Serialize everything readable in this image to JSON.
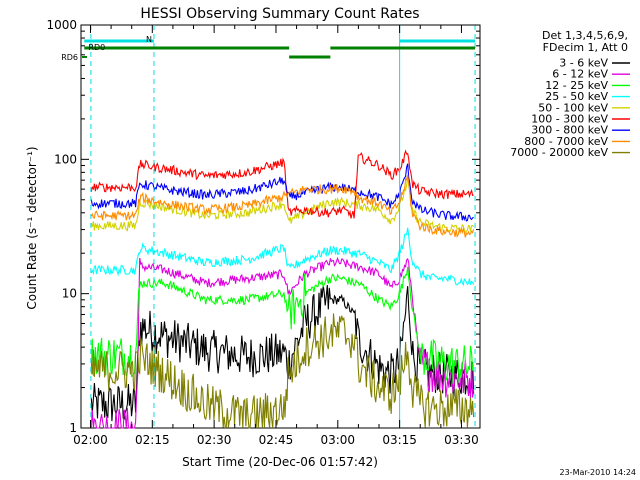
{
  "chart_data": {
    "type": "line",
    "title": "HESSI Observing Summary Count Rates",
    "xlabel": "Start Time (20-Dec-06 01:57:42)",
    "ylabel": "Count Rate (s⁻¹ detector⁻¹)",
    "yscale": "log",
    "xlim_minutes": [
      117.7,
      214.5
    ],
    "ylim": [
      1,
      1000
    ],
    "x_ticks": [
      "02:00",
      "02:15",
      "02:30",
      "02:45",
      "03:00",
      "03:15",
      "03:30"
    ],
    "y_ticks": [
      "1",
      "10",
      "100",
      "1000"
    ],
    "legend_header": [
      "Det 1,3,4,5,6,9,",
      "FDecim 1, Att 0"
    ],
    "footer_date": "23-Mar-2010 14:24",
    "flags": [
      {
        "label": "N",
        "color": "#00e0e0"
      },
      {
        "label": "RD0",
        "color": "#008000"
      },
      {
        "label": "RD6",
        "color": "#008000"
      }
    ],
    "time_markers_minutes": [
      120.1,
      135.4,
      195.0,
      213.3
    ],
    "series": [
      {
        "name": "3 - 6 keV",
        "color": "#000000"
      },
      {
        "name": "6 - 12 keV",
        "color": "#e000e0"
      },
      {
        "name": "12 - 25 keV",
        "color": "#00ff00"
      },
      {
        "name": "25 - 50 keV",
        "color": "#00ffff"
      },
      {
        "name": "50 - 100 keV",
        "color": "#d2d200"
      },
      {
        "name": "100 - 300 keV",
        "color": "#ff0000"
      },
      {
        "name": "300 - 800 keV",
        "color": "#0000ff"
      },
      {
        "name": "800 - 7000 keV",
        "color": "#ff8c00"
      },
      {
        "name": "7000 - 20000 keV",
        "color": "#808000"
      }
    ],
    "node_minutes": [
      120.2,
      131,
      132,
      138,
      148,
      158,
      167,
      168,
      172,
      178,
      181,
      184,
      185,
      190,
      193,
      195,
      197,
      198,
      200,
      203,
      206,
      213
    ],
    "node_values": [
      [
        1.5,
        1.5,
        5.8,
        4.8,
        3.8,
        3.4,
        3.6,
        3.0,
        6.0,
        9.0,
        9.0,
        7.0,
        4.5,
        2.8,
        2.5,
        3.0,
        10.0,
        3.5,
        2.8,
        2.6,
        2.5,
        2.4
      ],
      [
        1.0,
        1.0,
        16,
        15,
        12,
        13,
        14,
        10,
        14,
        17,
        17,
        16,
        16,
        14,
        11,
        13,
        18,
        10,
        3.0,
        2.6,
        2.4,
        2.3
      ],
      [
        3.5,
        3.5,
        12,
        12,
        9,
        9,
        10,
        7,
        10,
        13,
        13,
        12,
        12,
        9,
        8,
        10,
        16,
        8,
        3.5,
        3.2,
        3.0,
        2.9
      ],
      [
        15,
        15,
        22,
        20,
        17,
        18,
        22,
        15,
        18,
        21,
        21,
        20,
        20,
        17,
        15,
        20,
        30,
        18,
        14,
        13,
        13,
        12
      ],
      [
        32,
        32,
        48,
        44,
        38,
        40,
        47,
        34,
        40,
        48,
        48,
        46,
        46,
        42,
        35,
        44,
        70,
        42,
        34,
        32,
        31,
        30
      ],
      [
        62,
        62,
        92,
        85,
        75,
        80,
        95,
        40,
        42,
        40,
        42,
        38,
        105,
        90,
        76,
        85,
        118,
        66,
        58,
        56,
        55,
        55
      ],
      [
        47,
        47,
        66,
        60,
        54,
        58,
        70,
        52,
        56,
        62,
        62,
        58,
        58,
        52,
        46,
        55,
        88,
        50,
        42,
        40,
        38,
        37
      ],
      [
        38,
        38,
        52,
        47,
        42,
        45,
        53,
        55,
        60,
        60,
        61,
        58,
        52,
        47,
        40,
        48,
        75,
        40,
        32,
        30,
        29,
        28
      ],
      [
        2.7,
        2.7,
        3.4,
        2.5,
        1.5,
        1.2,
        1.4,
        2.5,
        4.0,
        5.0,
        5.2,
        4.5,
        3.0,
        2.0,
        1.8,
        2.2,
        4.0,
        2.0,
        1.5,
        1.4,
        1.4,
        1.4
      ]
    ]
  }
}
